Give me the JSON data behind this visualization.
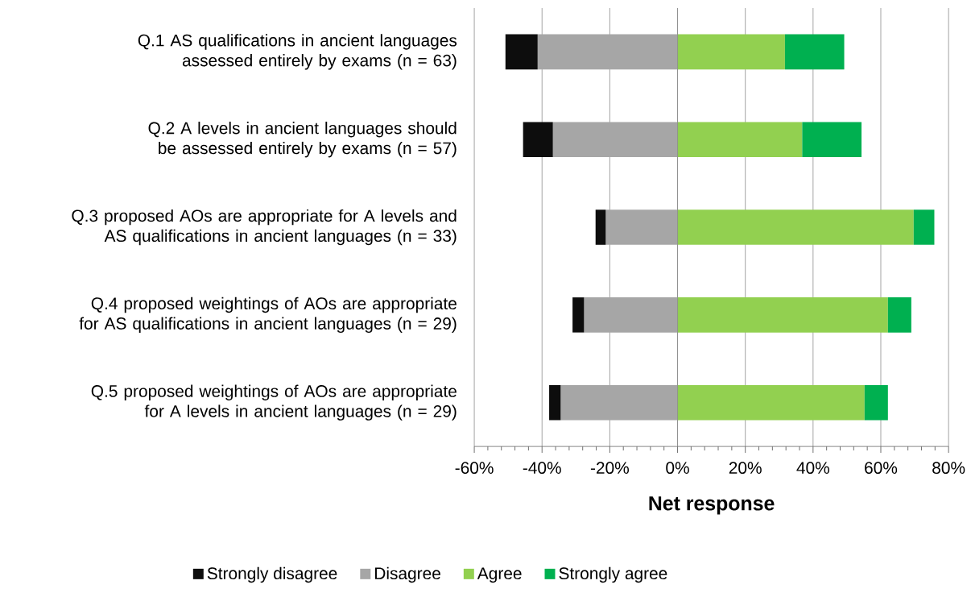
{
  "chart_data": {
    "type": "bar",
    "orientation": "horizontal",
    "stacked": true,
    "categories": [
      "Q.1 AS qualifications in ancient languages assessed entirely by exams (n = 63)",
      "Q.2 A levels in ancient languages should be assessed entirely by exams (n = 57)",
      "Q.3 proposed AOs are appropriate for A levels and AS qualifications in ancient languages (n = 33)",
      "Q.4 proposed weightings of AOs are appropriate for AS qualifications in ancient languages (n = 29)",
      "Q.5 proposed weightings of AOs are appropriate for A levels in ancient languages (n = 29)"
    ],
    "series": [
      {
        "name": "Disagree",
        "color": "#a6a6a6",
        "values": [
          -41.3,
          -36.8,
          -21.2,
          -27.6,
          -34.5
        ]
      },
      {
        "name": "Strongly disagree",
        "color": "#0d0d0d",
        "values": [
          -9.5,
          -8.8,
          -3.0,
          -3.4,
          -3.4
        ]
      },
      {
        "name": "Agree",
        "color": "#92d050",
        "values": [
          31.7,
          36.8,
          69.7,
          62.1,
          55.2
        ]
      },
      {
        "name": "Strongly agree",
        "color": "#00b050",
        "values": [
          17.5,
          17.5,
          6.1,
          6.9,
          6.9
        ]
      }
    ],
    "xlabel": "Net response",
    "xlim": [
      -60,
      80
    ],
    "xticks": [
      {
        "value": -60,
        "label": "-60%"
      },
      {
        "value": -40,
        "label": "-40%"
      },
      {
        "value": -20,
        "label": "-20%"
      },
      {
        "value": 0,
        "label": "0%"
      },
      {
        "value": 20,
        "label": "20%"
      },
      {
        "value": 40,
        "label": "40%"
      },
      {
        "value": 60,
        "label": "60%"
      },
      {
        "value": 80,
        "label": "80%"
      }
    ],
    "grid": "x",
    "legend": "bottom"
  }
}
